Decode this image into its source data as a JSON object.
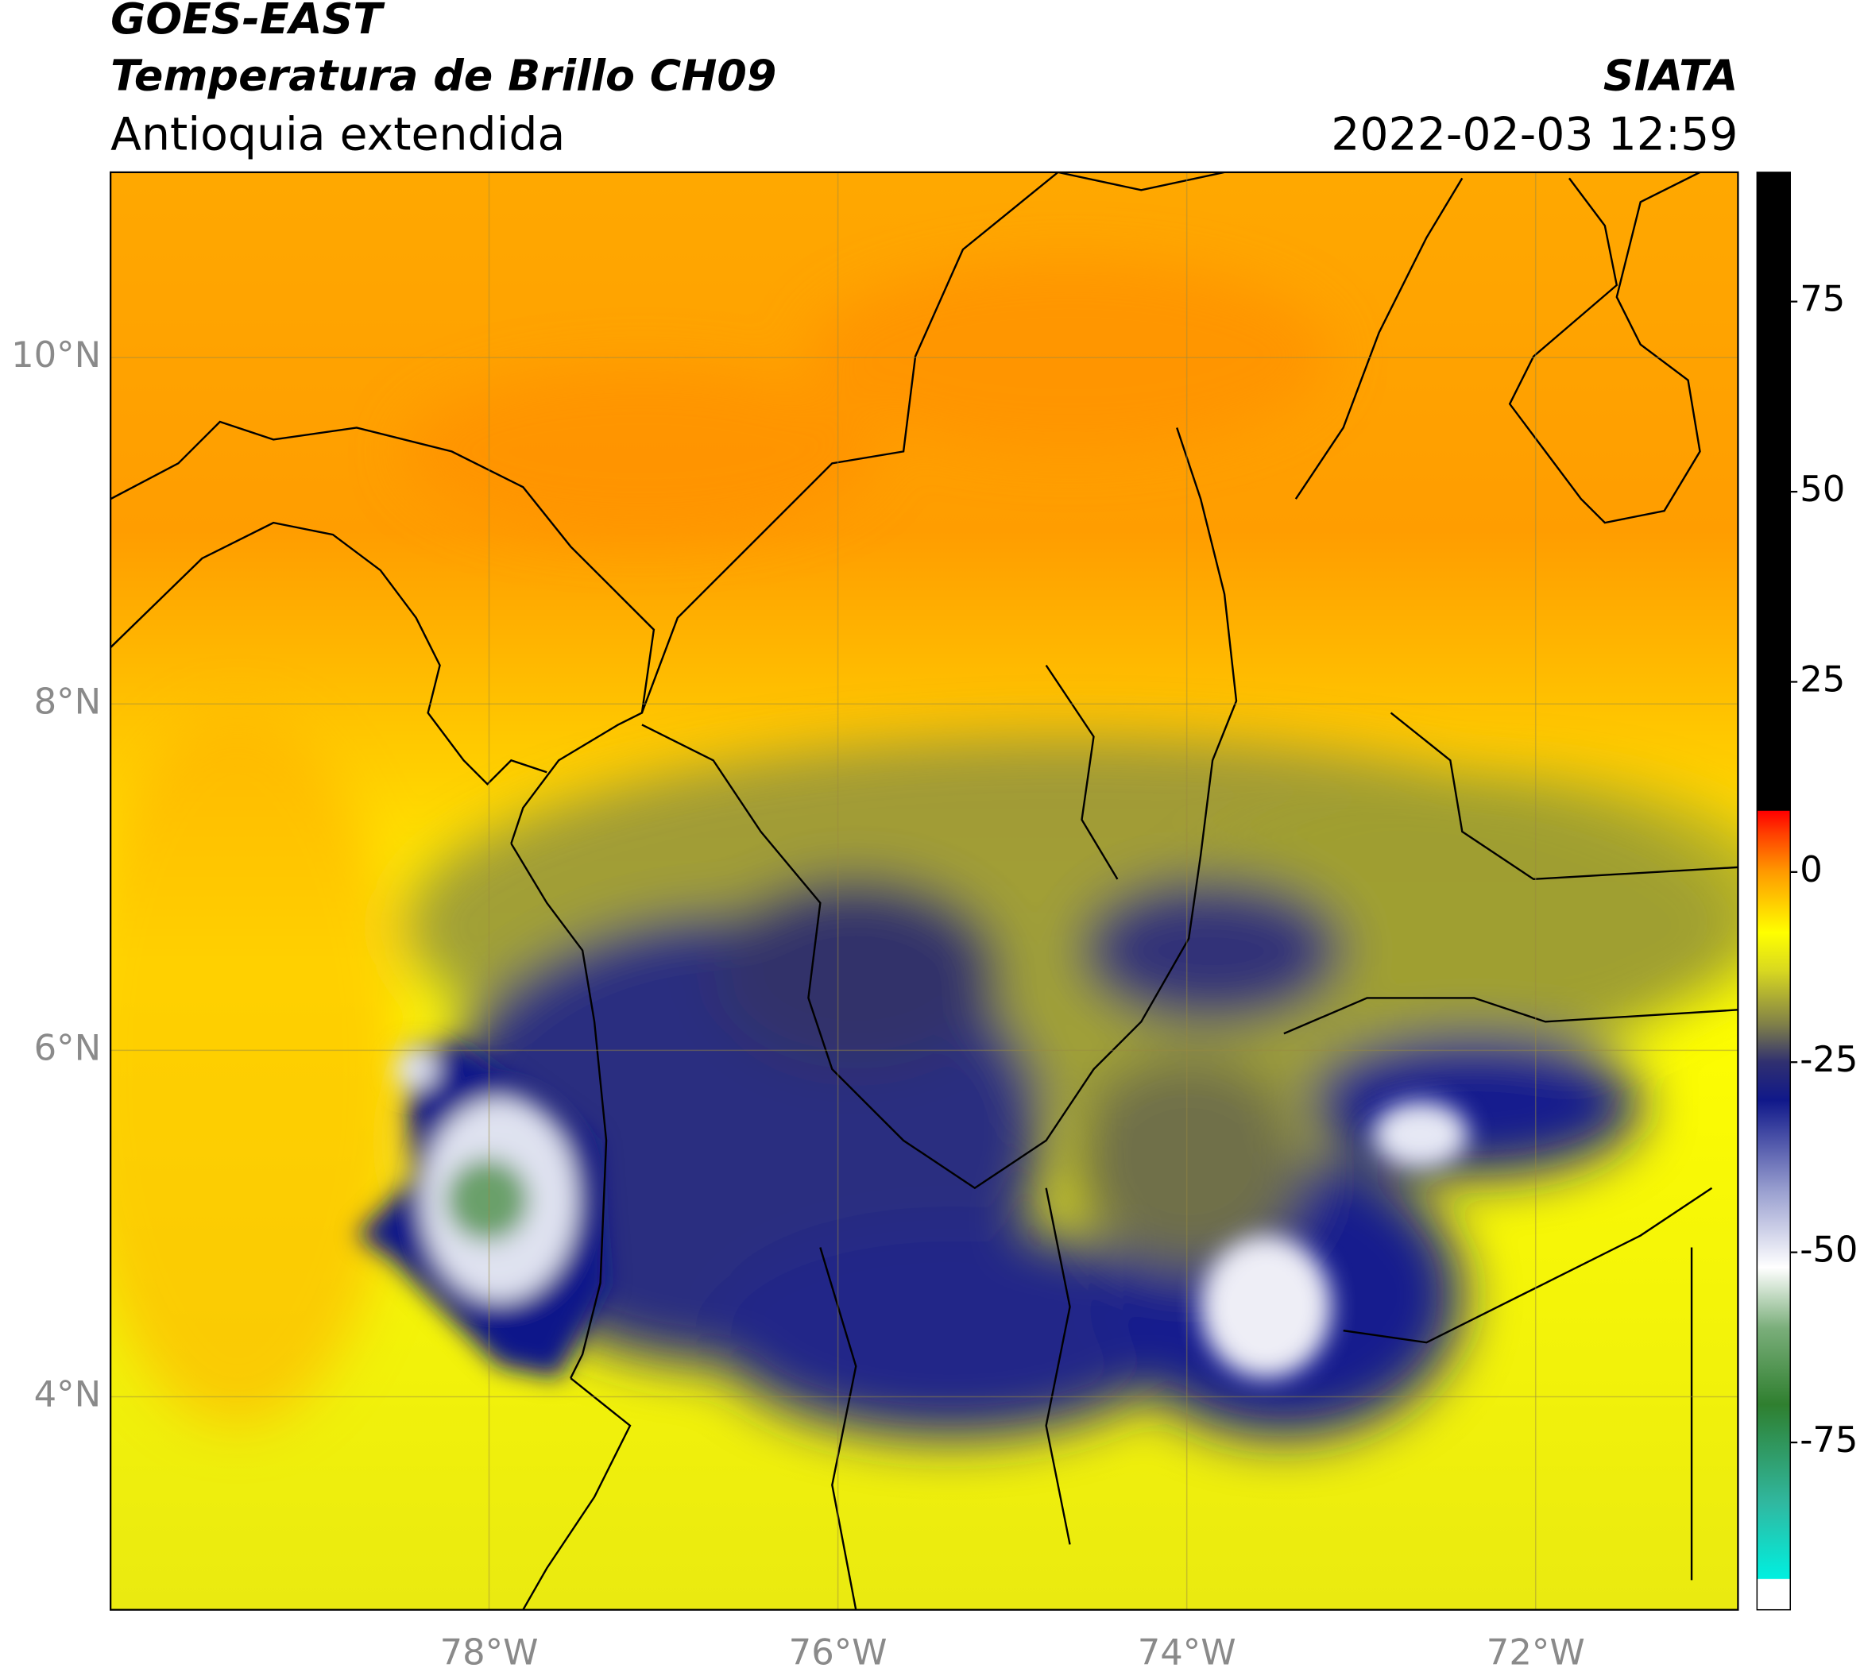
{
  "header": {
    "title": "GOES-EAST",
    "subtitle": "Temperatura de Brillo CH09",
    "region": "Antioquia extendida",
    "agency": "SIATA",
    "datetime": "2022-02-03 12:59"
  },
  "map": {
    "xlim": [
      -80.17,
      -70.84
    ],
    "ylim": [
      2.77,
      11.07
    ],
    "xticks": [
      {
        "value": -78,
        "label": "78°W"
      },
      {
        "value": -76,
        "label": "76°W"
      },
      {
        "value": -74,
        "label": "74°W"
      },
      {
        "value": -72,
        "label": "72°W"
      }
    ],
    "yticks": [
      {
        "value": 10,
        "label": "10°N"
      },
      {
        "value": 8,
        "label": "8°N"
      },
      {
        "value": 6,
        "label": "6°N"
      },
      {
        "value": 4,
        "label": "4°N"
      }
    ],
    "grid": true
  },
  "colorbar": {
    "lim": [
      -97,
      92
    ],
    "ticks": [
      75,
      50,
      25,
      0,
      -25,
      -50,
      -75
    ],
    "stops": [
      {
        "value": -97,
        "color": "#ffffff"
      },
      {
        "value": -93,
        "color": "#ffffff"
      },
      {
        "value": -92.9,
        "color": "#00f0e0"
      },
      {
        "value": -83,
        "color": "#30b8a0"
      },
      {
        "value": -70,
        "color": "#2f7f2f"
      },
      {
        "value": -60,
        "color": "#7aae7a"
      },
      {
        "value": -52,
        "color": "#ffffff"
      },
      {
        "value": -42,
        "color": "#9aa0d0"
      },
      {
        "value": -30,
        "color": "#10188a"
      },
      {
        "value": -25,
        "color": "#303070"
      },
      {
        "value": -20,
        "color": "#808048"
      },
      {
        "value": -13,
        "color": "#d8d820"
      },
      {
        "value": -8,
        "color": "#ffff00"
      },
      {
        "value": 0,
        "color": "#ff9a00"
      },
      {
        "value": 5,
        "color": "#ff4000"
      },
      {
        "value": 8,
        "color": "#ff0000"
      },
      {
        "value": 8.1,
        "color": "#000000"
      },
      {
        "value": 92,
        "color": "#000000"
      }
    ]
  }
}
